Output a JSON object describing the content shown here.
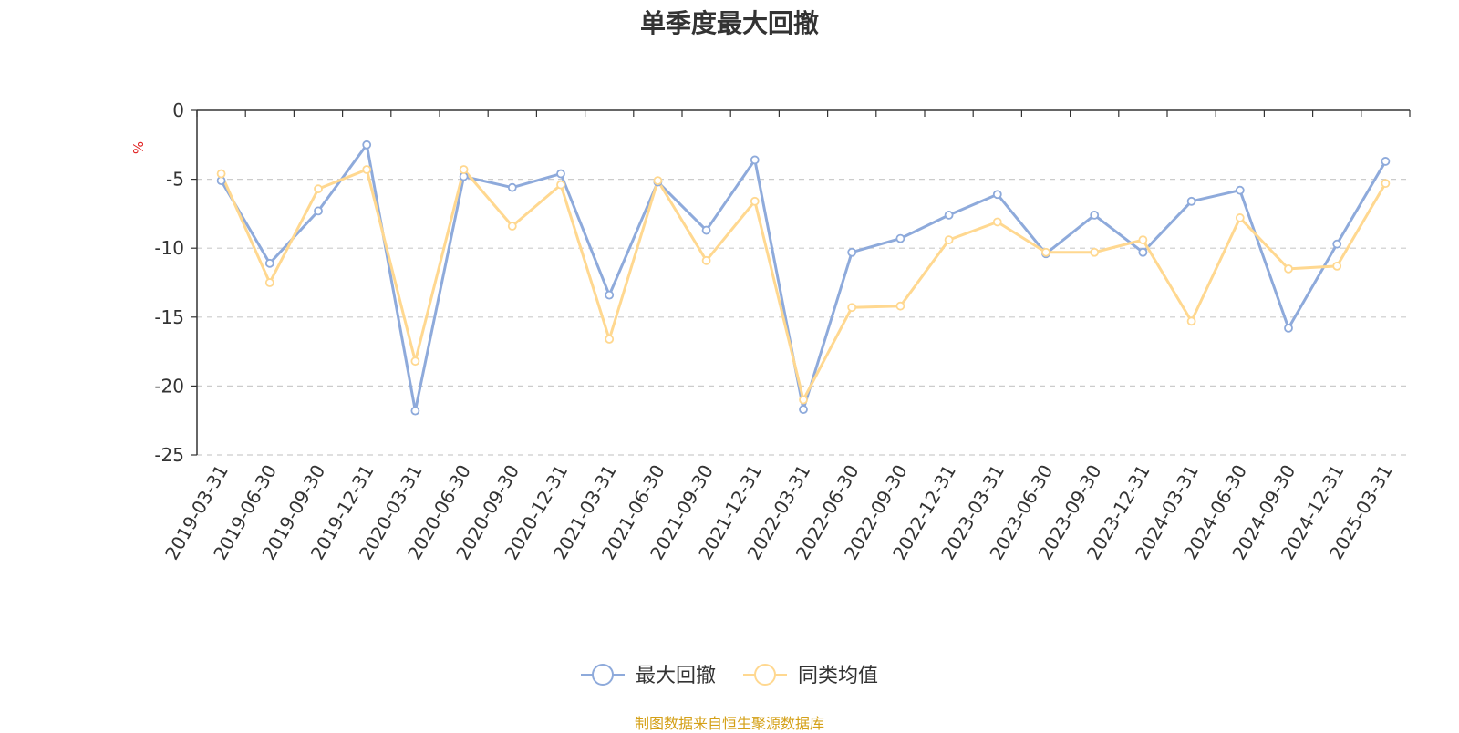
{
  "title": "单季度最大回撤",
  "source": "制图数据来自恒生聚源数据库",
  "chart_data": {
    "type": "line",
    "title": "单季度最大回撤",
    "ylabel": "%",
    "xlabel": "",
    "ylim": [
      -25,
      0
    ],
    "yticks": [
      0,
      -5,
      -10,
      -15,
      -20,
      -25
    ],
    "grid": true,
    "legend_position": "bottom-center",
    "categories": [
      "2019-03-31",
      "2019-06-30",
      "2019-09-30",
      "2019-12-31",
      "2020-03-31",
      "2020-06-30",
      "2020-09-30",
      "2020-12-31",
      "2021-03-31",
      "2021-06-30",
      "2021-09-30",
      "2021-12-31",
      "2022-03-31",
      "2022-06-30",
      "2022-09-30",
      "2022-12-31",
      "2023-03-31",
      "2023-06-30",
      "2023-09-30",
      "2023-12-31",
      "2024-03-31",
      "2024-06-30",
      "2024-09-30",
      "2024-12-31",
      "2025-03-31"
    ],
    "series": [
      {
        "name": "最大回撤",
        "color": "#8eaadb",
        "values": [
          -5.1,
          -11.1,
          -7.3,
          -2.5,
          -21.8,
          -4.8,
          -5.6,
          -4.6,
          -13.4,
          -5.2,
          -8.7,
          -3.6,
          -21.7,
          -10.3,
          -9.3,
          -7.6,
          -6.1,
          -10.4,
          -7.6,
          -10.3,
          -6.6,
          -5.8,
          -15.8,
          -9.7,
          -3.7
        ]
      },
      {
        "name": "同类均值",
        "color": "#ffd890",
        "values": [
          -4.6,
          -12.5,
          -5.7,
          -4.3,
          -18.2,
          -4.3,
          -8.4,
          -5.4,
          -16.6,
          -5.1,
          -10.9,
          -6.6,
          -21.0,
          -14.3,
          -14.2,
          -9.4,
          -8.1,
          -10.3,
          -10.3,
          -9.4,
          -15.3,
          -7.8,
          -11.5,
          -11.3,
          -5.3
        ]
      }
    ]
  }
}
